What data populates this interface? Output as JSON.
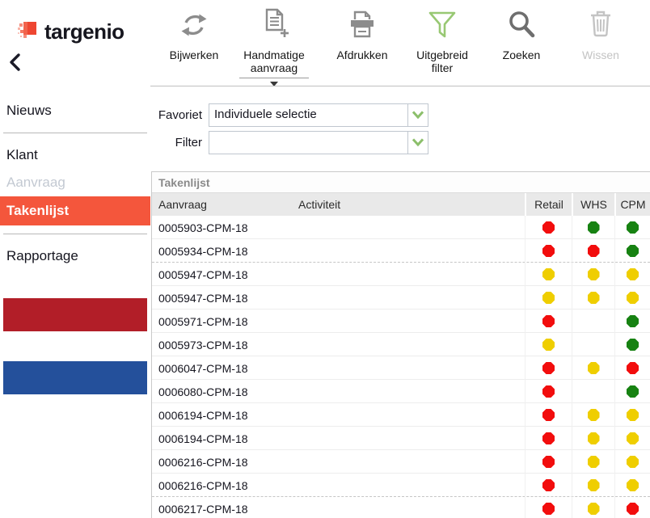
{
  "app": {
    "logo_text": "targenio"
  },
  "sidebar": {
    "items": [
      {
        "label": "Nieuws",
        "state": "normal"
      },
      {
        "label": "Klant",
        "state": "normal"
      },
      {
        "label": "Aanvraag",
        "state": "disabled"
      },
      {
        "label": "Takenlijst",
        "state": "selected"
      },
      {
        "label": "Rapportage",
        "state": "normal"
      }
    ],
    "flag_colors": {
      "red": "#b21e28",
      "blue": "#24509b"
    },
    "accent_color": "#f4563c"
  },
  "toolbar": {
    "buttons": [
      {
        "label": "Bijwerken",
        "icon": "refresh-icon",
        "enabled": true
      },
      {
        "label": "Handmatige aanvraag",
        "icon": "document-add-icon",
        "enabled": true,
        "has_dropdown": true
      },
      {
        "label": "Afdrukken",
        "icon": "printer-icon",
        "enabled": true
      },
      {
        "label": "Uitgebreid filter",
        "icon": "funnel-icon",
        "enabled": true
      },
      {
        "label": "Zoeken",
        "icon": "search-icon",
        "enabled": true
      },
      {
        "label": "Wissen",
        "icon": "trash-icon",
        "enabled": false
      }
    ]
  },
  "filters": {
    "favoriet": {
      "label": "Favoriet",
      "value": "Individuele selectie"
    },
    "filter": {
      "label": "Filter",
      "value": ""
    }
  },
  "table": {
    "title": "Takenlijst",
    "columns": [
      "Aanvraag",
      "Activiteit",
      "Retail",
      "WHS",
      "CPM"
    ],
    "status_colors": {
      "red": "#f20d0d",
      "green": "#178212",
      "yellow": "#efce00"
    },
    "rows": [
      {
        "aanvraag": "0005903-CPM-18",
        "activiteit": "",
        "retail": "red",
        "whs": "green",
        "cpm": "green",
        "group_end": false
      },
      {
        "aanvraag": "0005934-CPM-18",
        "activiteit": "",
        "retail": "red",
        "whs": "red",
        "cpm": "green",
        "group_end": true
      },
      {
        "aanvraag": "0005947-CPM-18",
        "activiteit": "",
        "retail": "yellow",
        "whs": "yellow",
        "cpm": "yellow",
        "group_end": false
      },
      {
        "aanvraag": "0005947-CPM-18",
        "activiteit": "",
        "retail": "yellow",
        "whs": "yellow",
        "cpm": "yellow",
        "group_end": false
      },
      {
        "aanvraag": "0005971-CPM-18",
        "activiteit": "",
        "retail": "red",
        "whs": null,
        "cpm": "green",
        "group_end": false
      },
      {
        "aanvraag": "0005973-CPM-18",
        "activiteit": "",
        "retail": "yellow",
        "whs": null,
        "cpm": "green",
        "group_end": false
      },
      {
        "aanvraag": "0006047-CPM-18",
        "activiteit": "",
        "retail": "red",
        "whs": "yellow",
        "cpm": "red",
        "group_end": false
      },
      {
        "aanvraag": "0006080-CPM-18",
        "activiteit": "",
        "retail": "red",
        "whs": null,
        "cpm": "green",
        "group_end": false
      },
      {
        "aanvraag": "0006194-CPM-18",
        "activiteit": "",
        "retail": "red",
        "whs": "yellow",
        "cpm": "yellow",
        "group_end": false
      },
      {
        "aanvraag": "0006194-CPM-18",
        "activiteit": "",
        "retail": "red",
        "whs": "yellow",
        "cpm": "yellow",
        "group_end": false
      },
      {
        "aanvraag": "0006216-CPM-18",
        "activiteit": "",
        "retail": "red",
        "whs": "yellow",
        "cpm": "yellow",
        "group_end": false
      },
      {
        "aanvraag": "0006216-CPM-18",
        "activiteit": "",
        "retail": "red",
        "whs": "yellow",
        "cpm": "yellow",
        "group_end": true
      },
      {
        "aanvraag": "0006217-CPM-18",
        "activiteit": "",
        "retail": "red",
        "whs": "yellow",
        "cpm": "red",
        "group_end": false
      }
    ]
  }
}
